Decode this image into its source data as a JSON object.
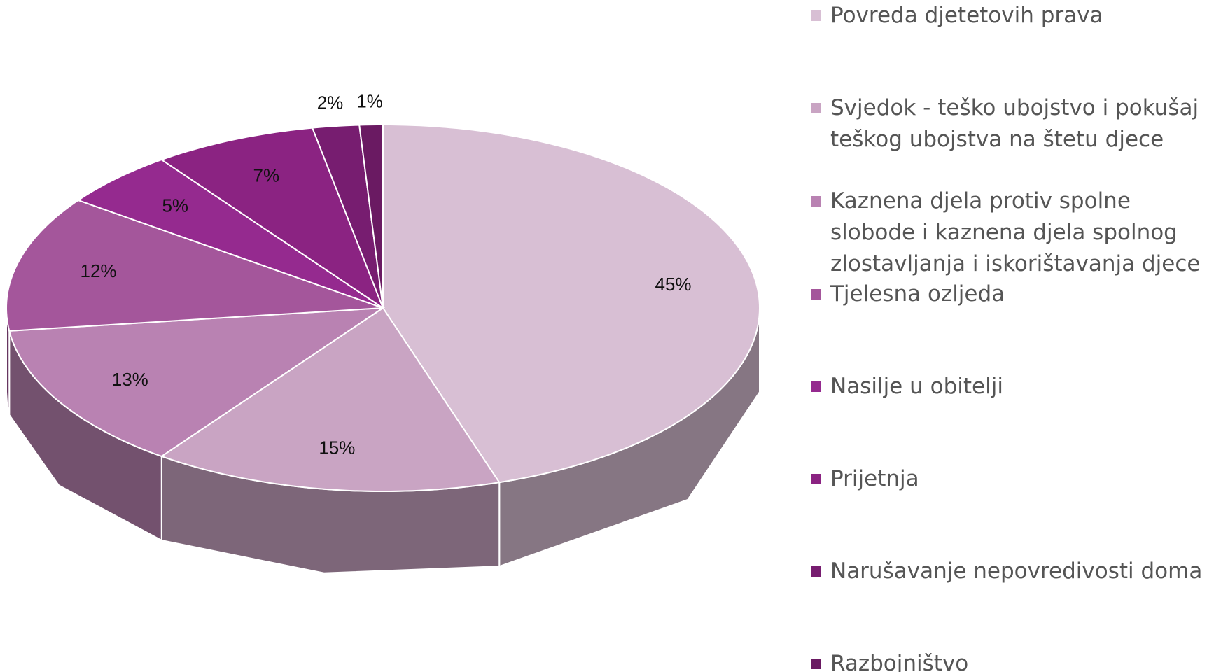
{
  "chart_data": {
    "type": "pie3d",
    "categories": [
      "Povreda djetetovih prava",
      "Svjedok - teško ubojstvo i pokušaj teškog ubojstva na štetu djece",
      "Kaznena djela protiv spolne slobode i kaznena djela spolnog zlostavljanja i iskorištavanja djece",
      "Tjelesna ozljeda",
      "Nasilje u obitelji",
      "Prijetnja",
      "Narušavanje nepovredivosti doma",
      "Razbojništvo"
    ],
    "values": [
      45,
      15,
      13,
      12,
      5,
      7,
      2,
      1
    ],
    "value_labels": [
      "45%",
      "15%",
      "13%",
      "12%",
      "5%",
      "7%",
      "2%",
      "1%"
    ],
    "colors": [
      "#d8bfd4",
      "#c9a4c3",
      "#b982b2",
      "#a4569b",
      "#952a8f",
      "#8b2382",
      "#771d70",
      "#6a1a62"
    ],
    "legend": "right"
  }
}
